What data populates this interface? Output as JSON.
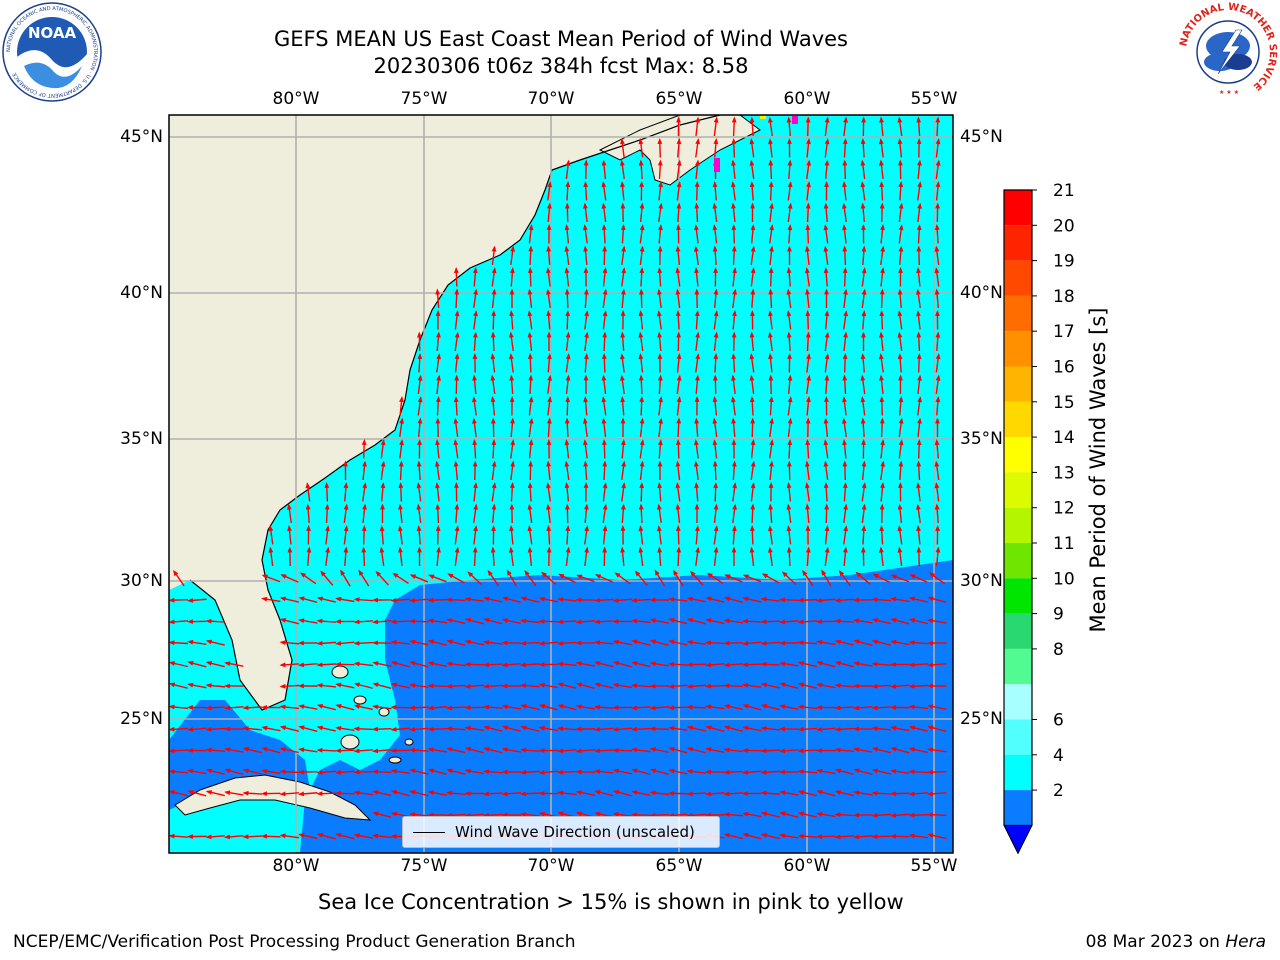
{
  "title": {
    "line1": "GEFS MEAN US East Coast Mean Period of Wind Waves",
    "line2": "20230306 t06z 384h fcst   Max: 8.58"
  },
  "map": {
    "lon_ticks": [
      "80°W",
      "75°W",
      "70°W",
      "65°W",
      "60°W",
      "55°W"
    ],
    "lat_ticks": [
      "45°N",
      "40°N",
      "35°N",
      "30°N",
      "25°N"
    ],
    "land_color": "#efeedd",
    "ocean_light_color": "#00ffff",
    "ocean_dark_color": "#0a7cff",
    "arrow_color": "#ff0000"
  },
  "legend": {
    "label": "Wind Wave Direction (unscaled)"
  },
  "colorbar": {
    "title": "Mean Period of Wind Waves [s]",
    "tick_labels": [
      "21",
      "20",
      "19",
      "18",
      "17",
      "16",
      "15",
      "14",
      "13",
      "12",
      "11",
      "10",
      "9",
      "8",
      "6",
      "4",
      "2"
    ],
    "colors_top_to_bottom": [
      "#ff0000",
      "#ff2400",
      "#ff4800",
      "#ff6c00",
      "#ff9000",
      "#ffb400",
      "#ffd800",
      "#ffff00",
      "#dcfa00",
      "#b4f500",
      "#6ee600",
      "#00e600",
      "#2ad870",
      "#52fa92",
      "#a8ffff",
      "#52ffff",
      "#00ffff",
      "#0a7cff",
      "#0000ff"
    ]
  },
  "subtitle": "Sea Ice Concentration > 15% is shown in pink to yellow",
  "footer": {
    "left": "NCEP/EMC/Verification Post Processing Product Generation Branch",
    "right_date": "08 Mar 2023 on ",
    "right_machine": "Hera"
  },
  "logos": {
    "noaa_text": "NOAA",
    "noaa_ring": "NATIONAL OCEANIC AND ATMOSPHERIC ADMINISTRATION · U.S. DEPARTMENT OF COMMERCE",
    "nws_ring": "NATIONAL WEATHER SERVICE"
  }
}
